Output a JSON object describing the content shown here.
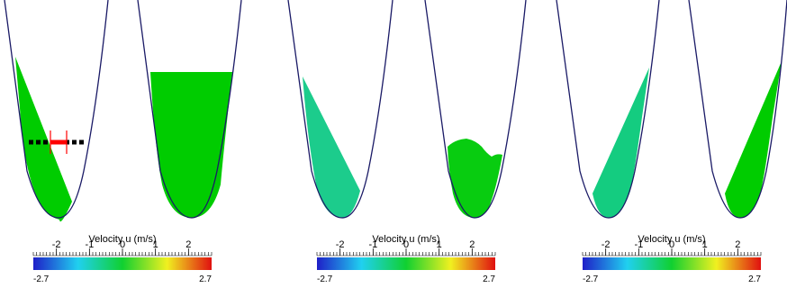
{
  "colorbar": {
    "title": "Velocity u (m/s)",
    "min_label": "-2.7",
    "max_label": "2.7",
    "min": -2.7,
    "max": 2.7,
    "ticks": [
      {
        "value": -2,
        "label": "-2"
      },
      {
        "value": -1,
        "label": "-1"
      },
      {
        "value": 0,
        "label": "0"
      },
      {
        "value": 1,
        "label": "1"
      },
      {
        "value": 2,
        "label": "2"
      }
    ],
    "colormap": [
      "#1f1fc8",
      "#20d0f0",
      "#10d030",
      "#f0f020",
      "#e01010"
    ]
  },
  "panels": [
    {
      "basins": [
        {
          "fill": "wedge-left",
          "velocity": 0.0,
          "color": "#00cc00"
        },
        {
          "fill": "flat",
          "velocity": 0.0,
          "color": "#00cc00"
        }
      ]
    },
    {
      "basins": [
        {
          "fill": "wedge-left",
          "velocity": -0.4,
          "color": "#1ccc8c"
        },
        {
          "fill": "wavy",
          "velocity": 0.1,
          "color": "#08cc10"
        }
      ]
    },
    {
      "basins": [
        {
          "fill": "wedge-right",
          "velocity": -0.3,
          "color": "#14cc80"
        },
        {
          "fill": "wedge-right",
          "velocity": 0.0,
          "color": "#00cc00"
        }
      ]
    }
  ],
  "colors": {
    "basin_outline": "#1a1a66",
    "marker_dashes": "#000000",
    "marker_red": "#ff0000"
  }
}
